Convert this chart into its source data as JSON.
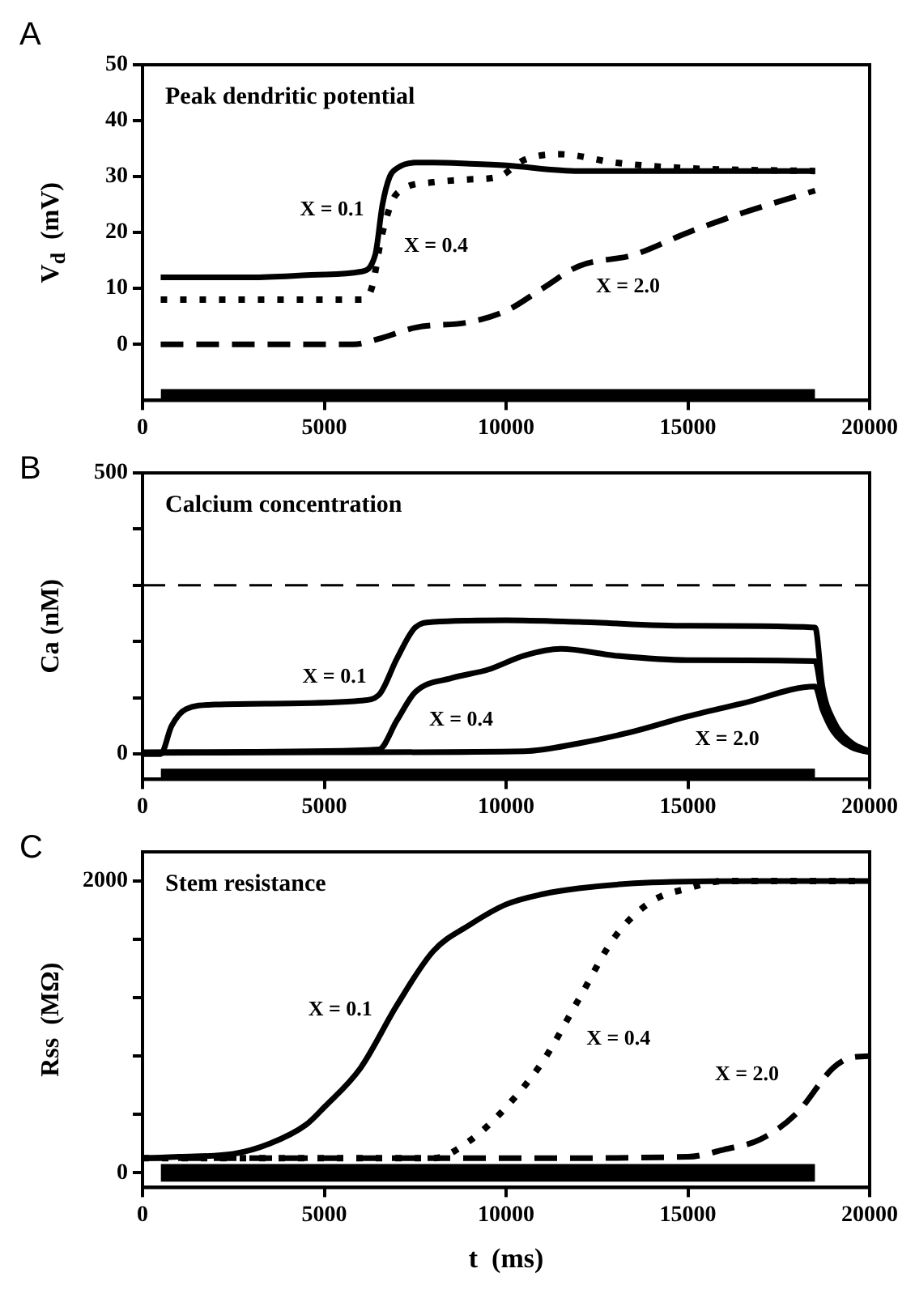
{
  "chart_data": [
    {
      "type": "line",
      "title": "Peak dendritic potential",
      "ylabel": "V$_{d}$  (mV)",
      "xlim": [
        0,
        20000
      ],
      "xticks": [
        0,
        5000,
        10000,
        15000,
        20000
      ],
      "ylim": [
        -10,
        50
      ],
      "yticks": [
        0,
        10,
        20,
        30,
        40,
        50
      ],
      "grid": false,
      "legend": false,
      "marker": "none",
      "annotations": [
        "A"
      ],
      "series": [
        {
          "name": "X = 0.1",
          "color": "#000000",
          "line_style": "solid",
          "x": [
            500,
            3000,
            5000,
            6000,
            6400,
            6600,
            6800,
            7000,
            7500,
            8000,
            9000,
            10000,
            12000,
            15000,
            18500
          ],
          "values": [
            12,
            12,
            12.5,
            13,
            16,
            25,
            30,
            31.5,
            32.5,
            32.5,
            32.3,
            32,
            31,
            31,
            31
          ]
        },
        {
          "name": "X = 0.4",
          "color": "#000000",
          "line_style": "dotted",
          "x": [
            500,
            3000,
            6000,
            6300,
            6600,
            7000,
            8000,
            9000,
            9800,
            10500,
            11500,
            13000,
            15000,
            18500
          ],
          "values": [
            8,
            8,
            8,
            10,
            20,
            27,
            29,
            29.5,
            30,
            33,
            34,
            32.5,
            31.5,
            31
          ]
        },
        {
          "name": "X = 2.0",
          "color": "#000000",
          "line_style": "dashed",
          "x": [
            500,
            3000,
            5800,
            6500,
            7500,
            9000,
            10000,
            11000,
            12000,
            13500,
            15000,
            16500,
            18500
          ],
          "values": [
            0,
            0,
            0,
            1,
            3,
            4,
            6,
            10,
            14,
            16,
            20,
            23.5,
            27.5
          ]
        },
        {
          "color": "#000000",
          "x": [
            500,
            18500
          ],
          "values": [
            null,
            null
          ],
          "lower": [
            -10,
            -10
          ],
          "upper": [
            -8,
            -8
          ]
        }
      ]
    },
    {
      "type": "line",
      "title": "Calcium concentration",
      "ylabel": "Ca (nM)",
      "xlim": [
        0,
        20000
      ],
      "xticks": [
        0,
        5000,
        10000,
        15000,
        20000
      ],
      "ylim": [
        -45,
        500
      ],
      "yticks": [
        0,
        {
          "value": 100,
          "label": null
        },
        {
          "value": 200,
          "label": null
        },
        {
          "value": 300,
          "label": null
        },
        {
          "value": 400,
          "label": null
        },
        500
      ],
      "grid": false,
      "legend": false,
      "marker": "none",
      "ref_lines": [
        {
          "axis": "y",
          "value": 300,
          "line_style": "dashed",
          "color": "#000000"
        }
      ],
      "annotations": [
        "B"
      ],
      "series": [
        {
          "name": "X = 0.1",
          "color": "#000000",
          "line_style": "solid",
          "x": [
            0,
            500,
            800,
            1200,
            2000,
            4000,
            6000,
            6500,
            7000,
            7500,
            8000,
            10000,
            12000,
            15000,
            18500,
            18700,
            19000,
            19500,
            20000
          ],
          "values": [
            0,
            0,
            50,
            80,
            88,
            90,
            95,
            105,
            170,
            225,
            235,
            238,
            235,
            228,
            225,
            120,
            60,
            20,
            5
          ]
        },
        {
          "name": "X = 0.4",
          "color": "#000000",
          "line_style": "solid",
          "x": [
            0,
            3000,
            6500,
            7000,
            7500,
            8500,
            9500,
            10500,
            11500,
            13000,
            15000,
            18500,
            18700,
            19000,
            19500,
            20000
          ],
          "values": [
            3,
            4,
            8,
            60,
            110,
            135,
            150,
            175,
            187,
            175,
            167,
            165,
            100,
            50,
            18,
            4
          ]
        },
        {
          "name": "X = 2.0",
          "color": "#000000",
          "line_style": "solid",
          "x": [
            0,
            5000,
            10500,
            12000,
            13500,
            15000,
            16500,
            18500,
            18700,
            19000,
            19500,
            20000
          ],
          "values": [
            2,
            3,
            5,
            19,
            40,
            67,
            90,
            120,
            80,
            40,
            12,
            3
          ]
        },
        {
          "color": "#000000",
          "x": [
            500,
            18500
          ],
          "values": [
            null,
            null
          ],
          "lower": [
            -45,
            -45
          ],
          "upper": [
            -26,
            -26
          ]
        }
      ]
    },
    {
      "type": "line",
      "title": "Stem resistance",
      "ylabel": "Rss  (MΩ)",
      "xlabel": "t  (ms)",
      "xlim": [
        0,
        20000
      ],
      "xticks": [
        0,
        5000,
        10000,
        15000,
        20000
      ],
      "ylim": [
        -100,
        2200
      ],
      "yticks": [
        0,
        {
          "value": 400,
          "label": null
        },
        {
          "value": 800,
          "label": null
        },
        {
          "value": 1200,
          "label": null
        },
        {
          "value": 1600,
          "label": null
        },
        2000
      ],
      "grid": false,
      "legend": false,
      "marker": "none",
      "annotations": [
        "C"
      ],
      "series": [
        {
          "name": "X = 0.1",
          "color": "#000000",
          "line_style": "solid",
          "x": [
            0,
            1000,
            2500,
            3500,
            4500,
            5000,
            6000,
            7000,
            8000,
            9000,
            10000,
            11000,
            12000,
            14000,
            17000,
            20000
          ],
          "values": [
            100,
            110,
            130,
            200,
            330,
            450,
            720,
            1150,
            1520,
            1700,
            1840,
            1910,
            1950,
            1990,
            2000,
            2000
          ]
        },
        {
          "name": "X = 0.4",
          "color": "#000000",
          "line_style": "dotted",
          "x": [
            0,
            4000,
            8000,
            9000,
            10000,
            11000,
            12000,
            13000,
            14000,
            15000,
            16000,
            20000
          ],
          "values": [
            100,
            100,
            100,
            220,
            450,
            760,
            1190,
            1620,
            1860,
            1950,
            2000,
            2000
          ]
        },
        {
          "name": "X = 2.0",
          "color": "#000000",
          "line_style": "dashed",
          "x": [
            0,
            5000,
            10000,
            15000,
            16000,
            17000,
            18000,
            19000,
            19500,
            20000
          ],
          "values": [
            100,
            100,
            100,
            110,
            160,
            230,
            410,
            720,
            790,
            800
          ]
        },
        {
          "color": "#000000",
          "x": [
            500,
            18500
          ],
          "values": [
            null,
            null
          ],
          "lower": [
            -60,
            -60
          ],
          "upper": [
            60,
            60
          ]
        }
      ]
    }
  ]
}
